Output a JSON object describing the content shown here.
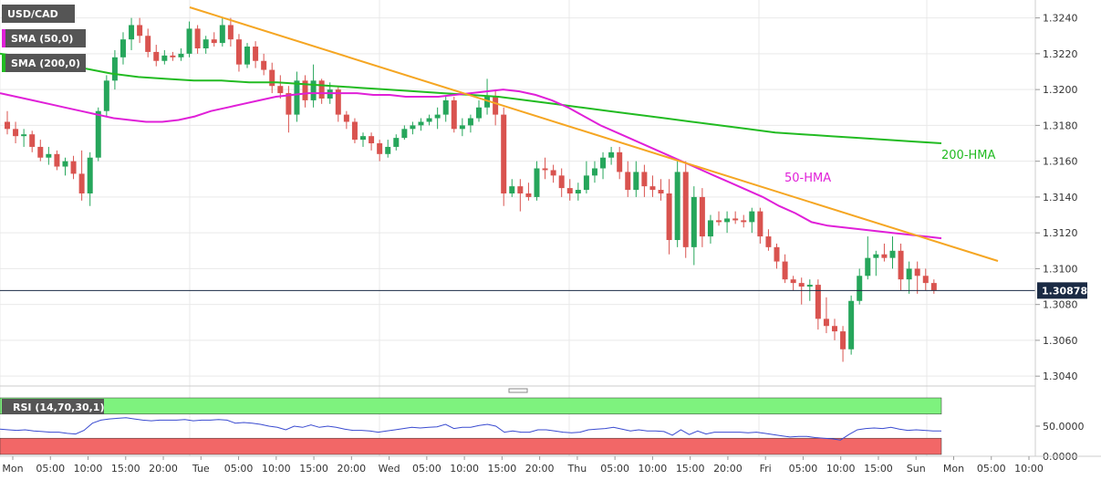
{
  "chart_data": {
    "type": "candlestick",
    "symbol": "USD/CAD",
    "price_axis": {
      "min": 1.3035,
      "max": 1.325,
      "ticks": [
        "1.3240",
        "1.3220",
        "1.3200",
        "1.3180",
        "1.3160",
        "1.3140",
        "1.3120",
        "1.3100",
        "1.3080",
        "1.3060",
        "1.3040"
      ],
      "current_price": "1.30878"
    },
    "time_axis_labels": [
      "Mon",
      "05:00",
      "10:00",
      "15:00",
      "20:00",
      "Tue",
      "05:00",
      "10:00",
      "15:00",
      "20:00",
      "Wed",
      "05:00",
      "10:00",
      "15:00",
      "20:00",
      "Thu",
      "05:00",
      "10:00",
      "15:00",
      "20:00",
      "Fri",
      "05:00",
      "10:00",
      "15:00",
      "Sun",
      "Mon",
      "05:00",
      "10:00"
    ],
    "legend": [
      {
        "label": "SMA (50,0)",
        "color": "#e020d8"
      },
      {
        "label": "SMA (200,0)",
        "color": "#22bb22"
      }
    ],
    "annotations": [
      {
        "text": "200-HMA",
        "color": "#22bb22"
      },
      {
        "text": "50-HMA",
        "color": "#e020d8"
      }
    ],
    "colors": {
      "up": "#26a65b",
      "down": "#d9534f",
      "trendline": "#f5a623",
      "sma50": "#e020d8",
      "sma200": "#22bb22"
    },
    "candles": [
      [
        1.3182,
        1.3188,
        1.3175,
        1.3178
      ],
      [
        1.3178,
        1.3182,
        1.317,
        1.3174
      ],
      [
        1.3174,
        1.3178,
        1.3168,
        1.3175
      ],
      [
        1.3175,
        1.3177,
        1.3165,
        1.3168
      ],
      [
        1.3168,
        1.3172,
        1.316,
        1.3162
      ],
      [
        1.3162,
        1.3168,
        1.3158,
        1.3164
      ],
      [
        1.3164,
        1.3166,
        1.3155,
        1.3157
      ],
      [
        1.3157,
        1.3162,
        1.3152,
        1.316
      ],
      [
        1.316,
        1.3163,
        1.315,
        1.3153
      ],
      [
        1.3153,
        1.3166,
        1.3138,
        1.3142
      ],
      [
        1.3142,
        1.3165,
        1.3135,
        1.3162
      ],
      [
        1.3162,
        1.319,
        1.316,
        1.3188
      ],
      [
        1.3188,
        1.3208,
        1.3185,
        1.3205
      ],
      [
        1.3205,
        1.3222,
        1.32,
        1.3218
      ],
      [
        1.3218,
        1.3232,
        1.3214,
        1.3228
      ],
      [
        1.3228,
        1.324,
        1.3222,
        1.3236
      ],
      [
        1.3236,
        1.324,
        1.3226,
        1.323
      ],
      [
        1.323,
        1.3234,
        1.3218,
        1.3221
      ],
      [
        1.3221,
        1.3225,
        1.3213,
        1.3216
      ],
      [
        1.3216,
        1.3222,
        1.3214,
        1.3219
      ],
      [
        1.3219,
        1.3221,
        1.3216,
        1.3218
      ],
      [
        1.3218,
        1.3223,
        1.3216,
        1.322
      ],
      [
        1.322,
        1.3238,
        1.3218,
        1.3234
      ],
      [
        1.3234,
        1.3236,
        1.322,
        1.3223
      ],
      [
        1.3223,
        1.323,
        1.322,
        1.3228
      ],
      [
        1.3228,
        1.3232,
        1.3224,
        1.3226
      ],
      [
        1.3226,
        1.324,
        1.3224,
        1.3236
      ],
      [
        1.3236,
        1.324,
        1.3224,
        1.3228
      ],
      [
        1.3228,
        1.3231,
        1.321,
        1.3214
      ],
      [
        1.3214,
        1.3226,
        1.3212,
        1.3224
      ],
      [
        1.3224,
        1.3227,
        1.3212,
        1.3216
      ],
      [
        1.3216,
        1.322,
        1.3208,
        1.3211
      ],
      [
        1.3211,
        1.3215,
        1.3198,
        1.3202
      ],
      [
        1.3202,
        1.3208,
        1.3195,
        1.3198
      ],
      [
        1.3198,
        1.3202,
        1.3176,
        1.3186
      ],
      [
        1.3186,
        1.321,
        1.3182,
        1.3205
      ],
      [
        1.3205,
        1.3208,
        1.319,
        1.3194
      ],
      [
        1.3194,
        1.3214,
        1.319,
        1.3205
      ],
      [
        1.3205,
        1.3206,
        1.3192,
        1.3195
      ],
      [
        1.3195,
        1.3204,
        1.3192,
        1.32
      ],
      [
        1.32,
        1.3202,
        1.3182,
        1.3186
      ],
      [
        1.3186,
        1.3188,
        1.3178,
        1.3182
      ],
      [
        1.3182,
        1.3184,
        1.317,
        1.3172
      ],
      [
        1.3172,
        1.3176,
        1.3168,
        1.3174
      ],
      [
        1.3174,
        1.3176,
        1.3166,
        1.317
      ],
      [
        1.317,
        1.3172,
        1.316,
        1.3164
      ],
      [
        1.3164,
        1.3172,
        1.3162,
        1.3168
      ],
      [
        1.3168,
        1.3175,
        1.3166,
        1.3173
      ],
      [
        1.3173,
        1.318,
        1.3172,
        1.3178
      ],
      [
        1.3178,
        1.3182,
        1.3175,
        1.318
      ],
      [
        1.318,
        1.3184,
        1.3177,
        1.3182
      ],
      [
        1.3182,
        1.3186,
        1.318,
        1.3184
      ],
      [
        1.3184,
        1.319,
        1.3178,
        1.3186
      ],
      [
        1.3186,
        1.3196,
        1.3182,
        1.3194
      ],
      [
        1.3194,
        1.3196,
        1.3176,
        1.3178
      ],
      [
        1.3178,
        1.3184,
        1.3174,
        1.318
      ],
      [
        1.318,
        1.3186,
        1.3176,
        1.3184
      ],
      [
        1.3184,
        1.3194,
        1.3182,
        1.319
      ],
      [
        1.319,
        1.3206,
        1.3186,
        1.3196
      ],
      [
        1.3196,
        1.32,
        1.318,
        1.3186
      ],
      [
        1.3186,
        1.319,
        1.3135,
        1.3142
      ],
      [
        1.3142,
        1.315,
        1.314,
        1.3146
      ],
      [
        1.3146,
        1.315,
        1.3132,
        1.3142
      ],
      [
        1.3142,
        1.3148,
        1.3138,
        1.314
      ],
      [
        1.314,
        1.316,
        1.3138,
        1.3156
      ],
      [
        1.3156,
        1.3162,
        1.315,
        1.3155
      ],
      [
        1.3155,
        1.3158,
        1.3148,
        1.3152
      ],
      [
        1.3152,
        1.3156,
        1.314,
        1.3145
      ],
      [
        1.3145,
        1.315,
        1.3138,
        1.3142
      ],
      [
        1.3142,
        1.3148,
        1.3138,
        1.3144
      ],
      [
        1.3144,
        1.316,
        1.3142,
        1.3152
      ],
      [
        1.3152,
        1.316,
        1.3148,
        1.3156
      ],
      [
        1.3156,
        1.3165,
        1.315,
        1.3162
      ],
      [
        1.3162,
        1.3168,
        1.3158,
        1.3165
      ],
      [
        1.3165,
        1.3168,
        1.315,
        1.3154
      ],
      [
        1.3154,
        1.316,
        1.314,
        1.3144
      ],
      [
        1.3144,
        1.316,
        1.314,
        1.3154
      ],
      [
        1.3154,
        1.3158,
        1.314,
        1.3146
      ],
      [
        1.3146,
        1.3152,
        1.314,
        1.3144
      ],
      [
        1.3144,
        1.315,
        1.3138,
        1.3142
      ],
      [
        1.3142,
        1.315,
        1.3108,
        1.3116
      ],
      [
        1.3116,
        1.316,
        1.3112,
        1.3154
      ],
      [
        1.3154,
        1.316,
        1.3106,
        1.3112
      ],
      [
        1.3112,
        1.3146,
        1.3102,
        1.314
      ],
      [
        1.314,
        1.3145,
        1.3112,
        1.3118
      ],
      [
        1.3118,
        1.313,
        1.3114,
        1.3127
      ],
      [
        1.3127,
        1.3132,
        1.3124,
        1.3126
      ],
      [
        1.3126,
        1.3132,
        1.312,
        1.3128
      ],
      [
        1.3128,
        1.3132,
        1.3125,
        1.3127
      ],
      [
        1.3127,
        1.313,
        1.3123,
        1.3126
      ],
      [
        1.3126,
        1.3134,
        1.312,
        1.3132
      ],
      [
        1.3132,
        1.3134,
        1.3114,
        1.3118
      ],
      [
        1.3118,
        1.3122,
        1.311,
        1.3112
      ],
      [
        1.3112,
        1.3114,
        1.31,
        1.3104
      ],
      [
        1.3104,
        1.3108,
        1.3092,
        1.3094
      ],
      [
        1.3094,
        1.3096,
        1.3088,
        1.3092
      ],
      [
        1.3092,
        1.3095,
        1.308,
        1.309
      ],
      [
        1.309,
        1.3094,
        1.3082,
        1.3091
      ],
      [
        1.3091,
        1.3094,
        1.3066,
        1.3072
      ],
      [
        1.3072,
        1.3084,
        1.3064,
        1.3068
      ],
      [
        1.3068,
        1.3072,
        1.306,
        1.3065
      ],
      [
        1.3065,
        1.3068,
        1.3048,
        1.3055
      ],
      [
        1.3055,
        1.3085,
        1.3052,
        1.3082
      ],
      [
        1.3082,
        1.31,
        1.308,
        1.3096
      ],
      [
        1.3096,
        1.3118,
        1.3094,
        1.3106
      ],
      [
        1.3106,
        1.311,
        1.3096,
        1.3108
      ],
      [
        1.3108,
        1.3114,
        1.3104,
        1.3106
      ],
      [
        1.3106,
        1.3118,
        1.31,
        1.311
      ],
      [
        1.311,
        1.3114,
        1.3088,
        1.3094
      ],
      [
        1.3094,
        1.3104,
        1.3086,
        1.31
      ],
      [
        1.31,
        1.3104,
        1.3086,
        1.3096
      ],
      [
        1.3096,
        1.31,
        1.3088,
        1.3092
      ],
      [
        1.3092,
        1.3094,
        1.3086,
        1.3088
      ]
    ],
    "sma50": [
      1.3198,
      1.3196,
      1.3194,
      1.3192,
      1.319,
      1.3188,
      1.3186,
      1.3184,
      1.3183,
      1.3182,
      1.3182,
      1.3183,
      1.3185,
      1.3188,
      1.319,
      1.3192,
      1.3194,
      1.3196,
      1.3197,
      1.3198,
      1.3198,
      1.3198,
      1.3198,
      1.3197,
      1.3197,
      1.3196,
      1.3196,
      1.3196,
      1.3197,
      1.3198,
      1.3199,
      1.32,
      1.3199,
      1.3197,
      1.3194,
      1.319,
      1.3185,
      1.318,
      1.3176,
      1.3172,
      1.3168,
      1.3164,
      1.316,
      1.3156,
      1.3152,
      1.3148,
      1.3144,
      1.314,
      1.3135,
      1.3131,
      1.3126,
      1.3124,
      1.3123,
      1.3122,
      1.3121,
      1.312,
      1.3119,
      1.3118,
      1.3117
    ],
    "sma200": [
      1.322,
      1.3218,
      1.3215,
      1.3212,
      1.3209,
      1.3207,
      1.3206,
      1.3205,
      1.3205,
      1.3204,
      1.3204,
      1.3203,
      1.3202,
      1.3201,
      1.32,
      1.3199,
      1.3198,
      1.3197,
      1.3196,
      1.3194,
      1.3192,
      1.319,
      1.3188,
      1.3186,
      1.3184,
      1.3182,
      1.318,
      1.3178,
      1.3176,
      1.3175,
      1.3174,
      1.3173,
      1.3172,
      1.3171,
      1.317
    ],
    "rsi": {
      "label": "RSI (14,70,30,1)",
      "ticks": [
        "50.0000",
        "0.0000"
      ],
      "overbought": 70,
      "oversold": 30,
      "values": [
        45,
        44,
        43,
        44,
        42,
        41,
        40,
        40,
        38,
        37,
        43,
        55,
        60,
        62,
        63,
        64,
        62,
        60,
        59,
        60,
        60,
        60,
        61,
        59,
        60,
        60,
        61,
        60,
        55,
        56,
        55,
        53,
        50,
        48,
        44,
        50,
        48,
        52,
        48,
        50,
        48,
        45,
        43,
        43,
        42,
        40,
        42,
        44,
        46,
        48,
        47,
        48,
        49,
        53,
        46,
        48,
        48,
        51,
        53,
        50,
        40,
        42,
        40,
        40,
        44,
        44,
        42,
        40,
        39,
        40,
        44,
        45,
        46,
        48,
        45,
        42,
        44,
        42,
        42,
        41,
        35,
        44,
        36,
        42,
        37,
        40,
        40,
        40,
        40,
        39,
        40,
        38,
        36,
        34,
        32,
        33,
        33,
        31,
        30,
        29,
        27,
        36,
        44,
        46,
        47,
        46,
        48,
        45,
        43,
        44,
        43,
        42,
        42
      ]
    }
  }
}
